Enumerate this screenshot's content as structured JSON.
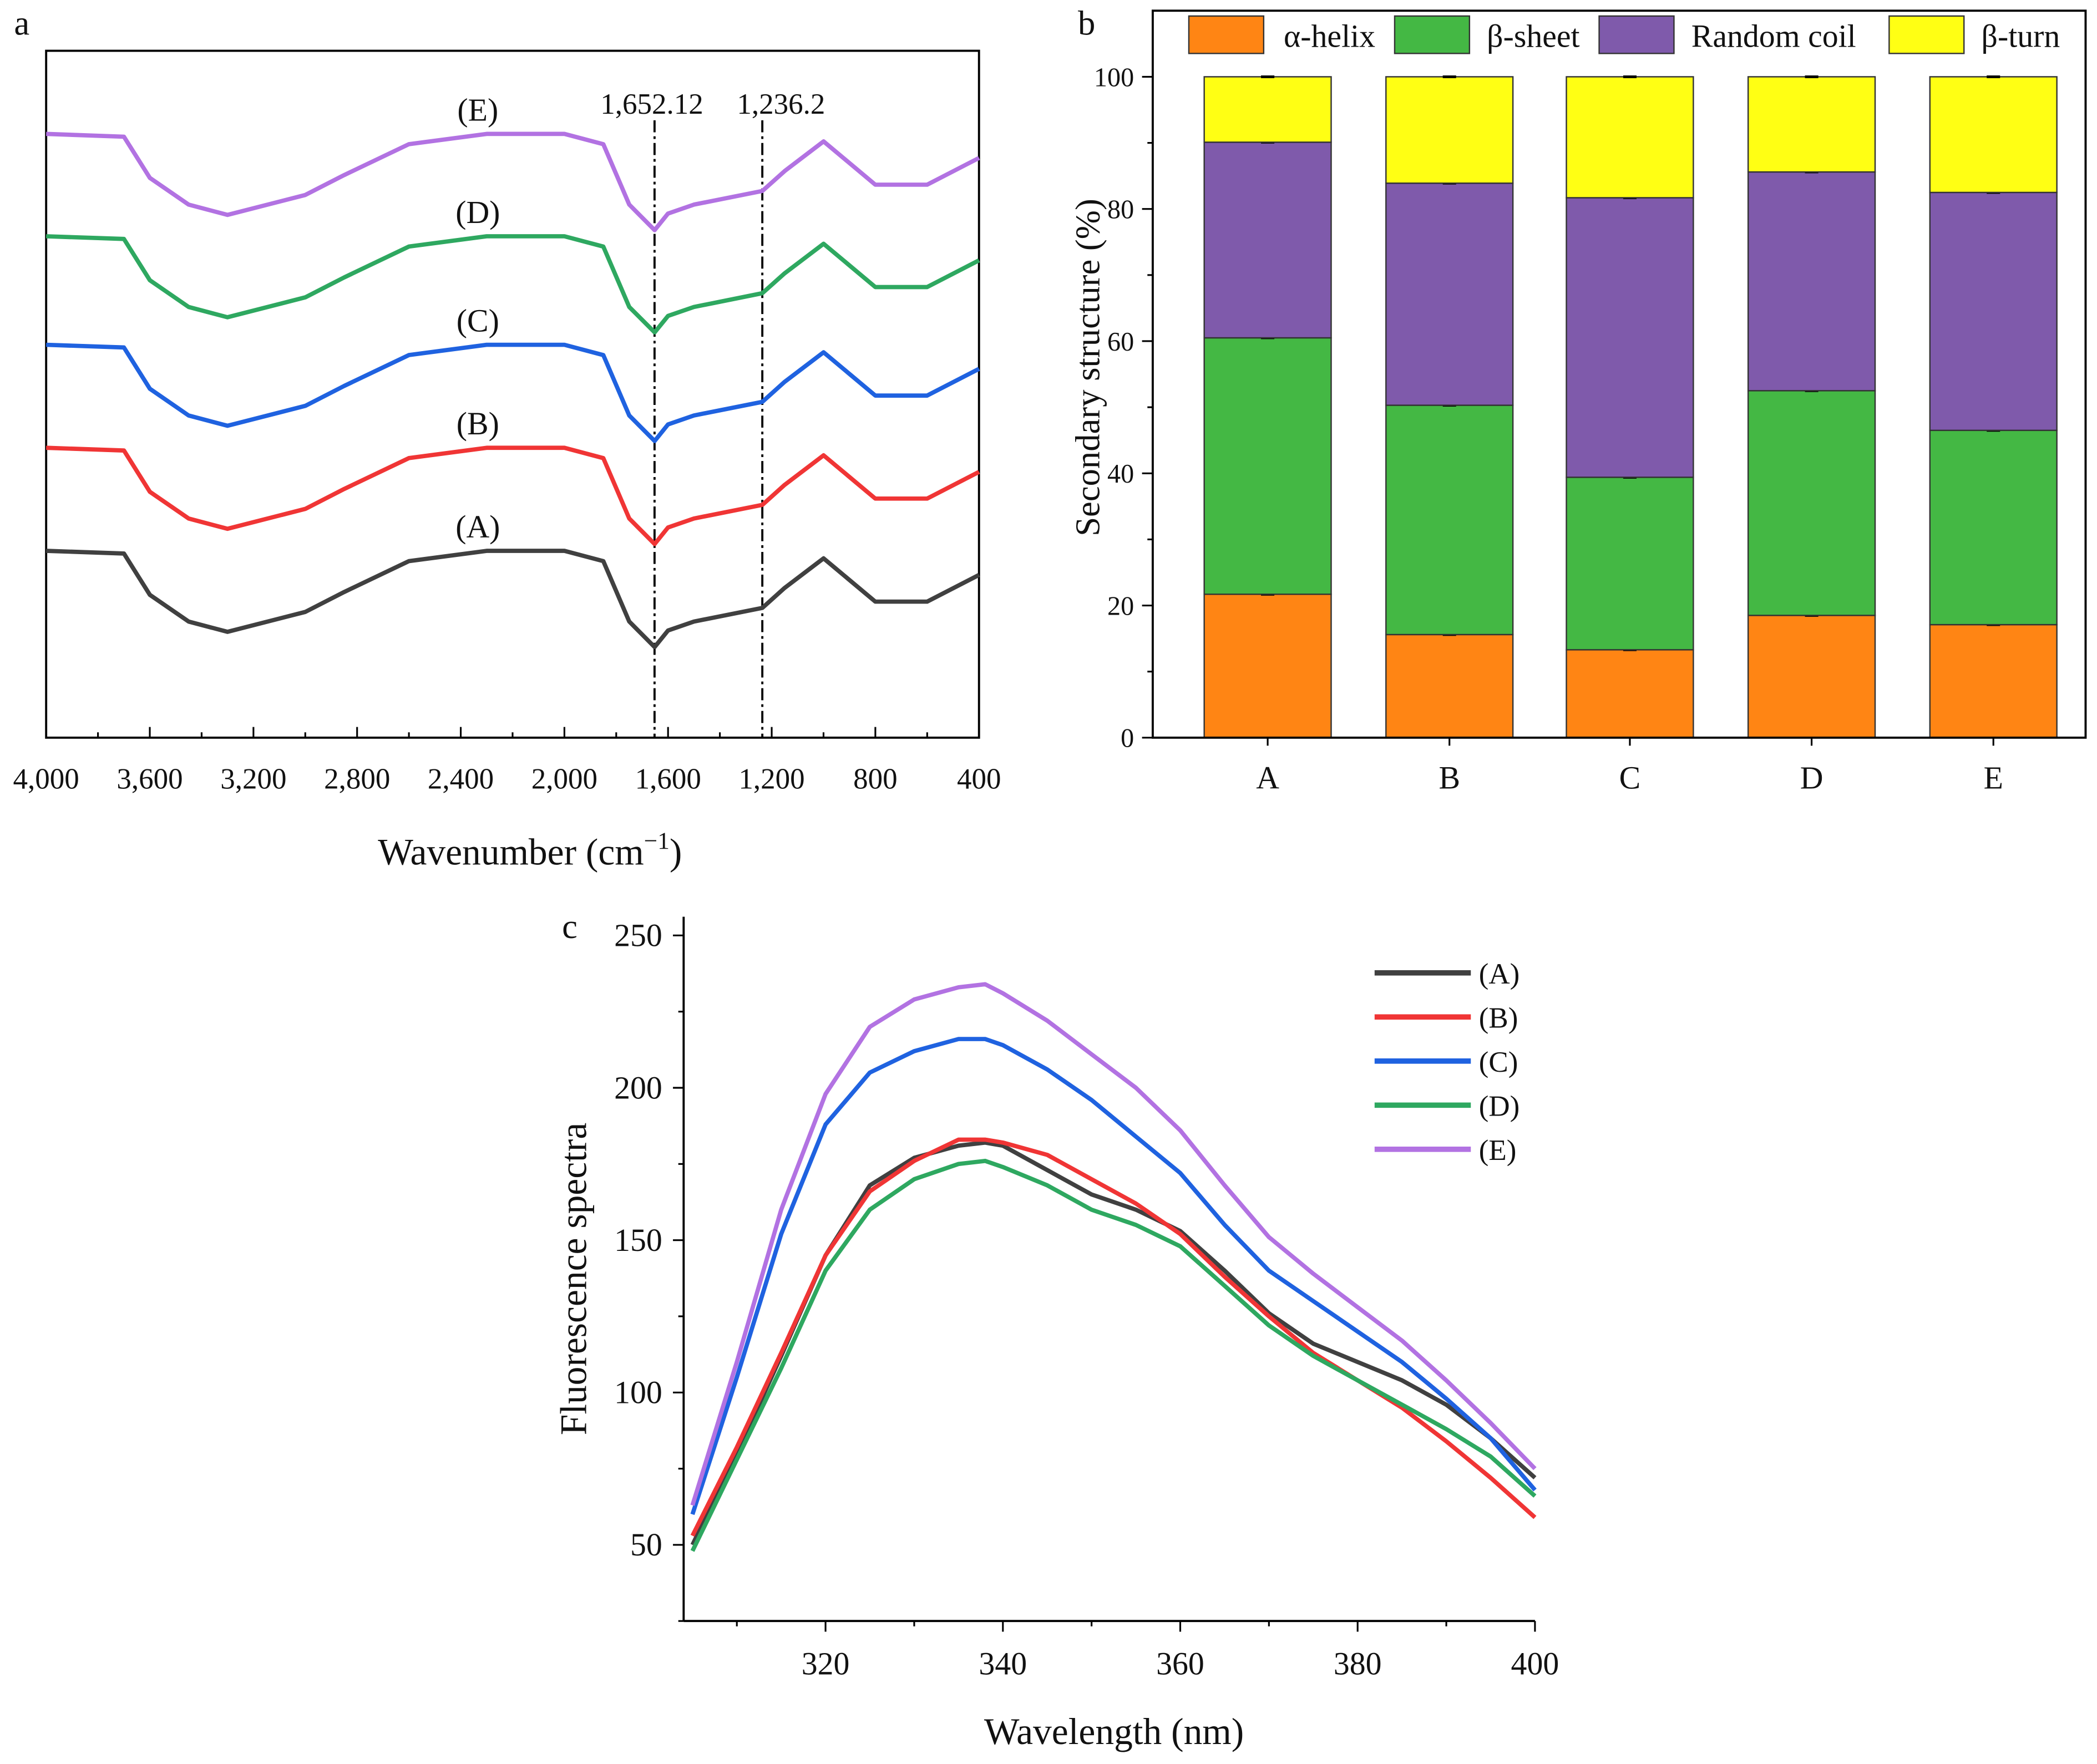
{
  "chart_data": [
    {
      "panel_label": "a",
      "type": "line",
      "xlabel": "Wavenumber (cm",
      "xlabel_sup": "−1",
      "xlabel_end": ")",
      "ylabel": "",
      "xlim": [
        4000,
        400
      ],
      "ylim": [
        0,
        100
      ],
      "x_reversed": true,
      "xticks": [
        4000,
        3600,
        3200,
        2800,
        2400,
        2000,
        1600,
        1200,
        800,
        400
      ],
      "xtick_labels": [
        "4,000",
        "3,600",
        "3,200",
        "2,800",
        "2,400",
        "2,000",
        "1,600",
        "1,200",
        "800",
        "400"
      ],
      "y_ticks_shown": false,
      "reference_lines": [
        {
          "x": 1652.12,
          "label": "1,652.12"
        },
        {
          "x": 1236.2,
          "label": "1,236.2"
        }
      ],
      "x": [
        4000,
        3700,
        3600,
        3450,
        3300,
        3000,
        2850,
        2600,
        2300,
        2000,
        1850,
        1750,
        1652,
        1600,
        1500,
        1236,
        1150,
        1000,
        800,
        600,
        400
      ],
      "series": [
        {
          "name": "(A)",
          "color": "#404040",
          "values": [
            27.2,
            26.8,
            20.8,
            16.9,
            15.4,
            18.3,
            21.2,
            25.7,
            27.2,
            27.2,
            25.7,
            16.9,
            13.2,
            15.6,
            16.9,
            18.9,
            21.8,
            26.1,
            19.8,
            19.8,
            23.7
          ]
        },
        {
          "name": "(B)",
          "color": "#f03535",
          "values": [
            42.2,
            41.8,
            35.8,
            31.9,
            30.4,
            33.3,
            36.2,
            40.7,
            42.2,
            42.2,
            40.7,
            31.9,
            28.2,
            30.6,
            31.9,
            33.9,
            36.8,
            41.1,
            34.8,
            34.8,
            38.7
          ]
        },
        {
          "name": "(C)",
          "color": "#1f62e0",
          "values": [
            57.2,
            56.8,
            50.8,
            46.9,
            45.4,
            48.3,
            51.2,
            55.7,
            57.2,
            57.2,
            55.7,
            46.9,
            43.2,
            45.6,
            46.9,
            48.9,
            51.8,
            56.1,
            49.8,
            49.8,
            53.7
          ]
        },
        {
          "name": "(D)",
          "color": "#2ea860",
          "values": [
            73.0,
            72.6,
            66.6,
            62.7,
            61.2,
            64.1,
            67.0,
            71.5,
            73.0,
            73.0,
            71.5,
            62.7,
            59.0,
            61.4,
            62.7,
            64.7,
            67.6,
            71.9,
            65.6,
            65.6,
            69.5
          ]
        },
        {
          "name": "(E)",
          "color": "#b272e2",
          "values": [
            87.9,
            87.5,
            81.5,
            77.6,
            76.1,
            79.0,
            81.9,
            86.4,
            87.9,
            87.9,
            86.4,
            77.6,
            73.9,
            76.3,
            77.6,
            79.6,
            82.5,
            86.8,
            80.5,
            80.5,
            84.4
          ]
        }
      ]
    },
    {
      "panel_label": "b",
      "type": "bar",
      "stacked": true,
      "categories": [
        "A",
        "B",
        "C",
        "D",
        "E"
      ],
      "ylabel": "Secondary structure (%)",
      "xlabel": "",
      "ylim": [
        0,
        110
      ],
      "yticks": [
        0,
        20,
        40,
        60,
        80,
        100
      ],
      "legend_position": "top",
      "series": [
        {
          "name": "α-helix",
          "color": "#ff8514",
          "values": [
            21.7,
            15.6,
            13.3,
            18.5,
            17.1
          ]
        },
        {
          "name": "β-sheet",
          "color": "#44b844",
          "values": [
            38.8,
            34.7,
            26.1,
            34.0,
            29.4
          ]
        },
        {
          "name": "Random coil",
          "color": "#7f5aab",
          "values": [
            29.6,
            33.6,
            42.3,
            33.1,
            36.0
          ]
        },
        {
          "name": "β-turn",
          "color": "#ffff14",
          "values": [
            9.9,
            16.1,
            18.3,
            14.4,
            17.5
          ]
        }
      ]
    },
    {
      "panel_label": "c",
      "type": "line",
      "xlabel": "Wavelength (nm)",
      "ylabel": "Fluorescence spectra",
      "xlim": [
        304,
        400
      ],
      "ylim": [
        25,
        250
      ],
      "xticks": [
        320,
        340,
        360,
        380,
        400
      ],
      "yticks": [
        50,
        100,
        150,
        200,
        250
      ],
      "legend_position": "top-right",
      "x": [
        305,
        310,
        315,
        320,
        325,
        330,
        335,
        338,
        340,
        345,
        350,
        355,
        360,
        365,
        370,
        375,
        380,
        385,
        390,
        395,
        400
      ],
      "series": [
        {
          "name": "(A)",
          "color": "#404040",
          "values": [
            50,
            80,
            112,
            145,
            168,
            177,
            181,
            182,
            181,
            173,
            165,
            160,
            153,
            140,
            126,
            116,
            110,
            104,
            96,
            85,
            72
          ]
        },
        {
          "name": "(B)",
          "color": "#f03535",
          "values": [
            53,
            82,
            113,
            145,
            166,
            176,
            183,
            183,
            182,
            178,
            170,
            162,
            152,
            138,
            125,
            113,
            104,
            95,
            84,
            72,
            59
          ]
        },
        {
          "name": "(C)",
          "color": "#1f62e0",
          "values": [
            60,
            105,
            152,
            188,
            205,
            212,
            216,
            216,
            214,
            206,
            196,
            184,
            172,
            155,
            140,
            130,
            120,
            110,
            98,
            85,
            68
          ]
        },
        {
          "name": "(D)",
          "color": "#2ea860",
          "values": [
            48,
            78,
            108,
            140,
            160,
            170,
            175,
            176,
            174,
            168,
            160,
            155,
            148,
            135,
            122,
            112,
            104,
            96,
            88,
            79,
            66
          ]
        },
        {
          "name": "(E)",
          "color": "#b272e2",
          "values": [
            63,
            110,
            160,
            198,
            220,
            229,
            233,
            234,
            231,
            222,
            211,
            200,
            186,
            168,
            151,
            139,
            128,
            117,
            104,
            90,
            75
          ]
        }
      ]
    }
  ]
}
